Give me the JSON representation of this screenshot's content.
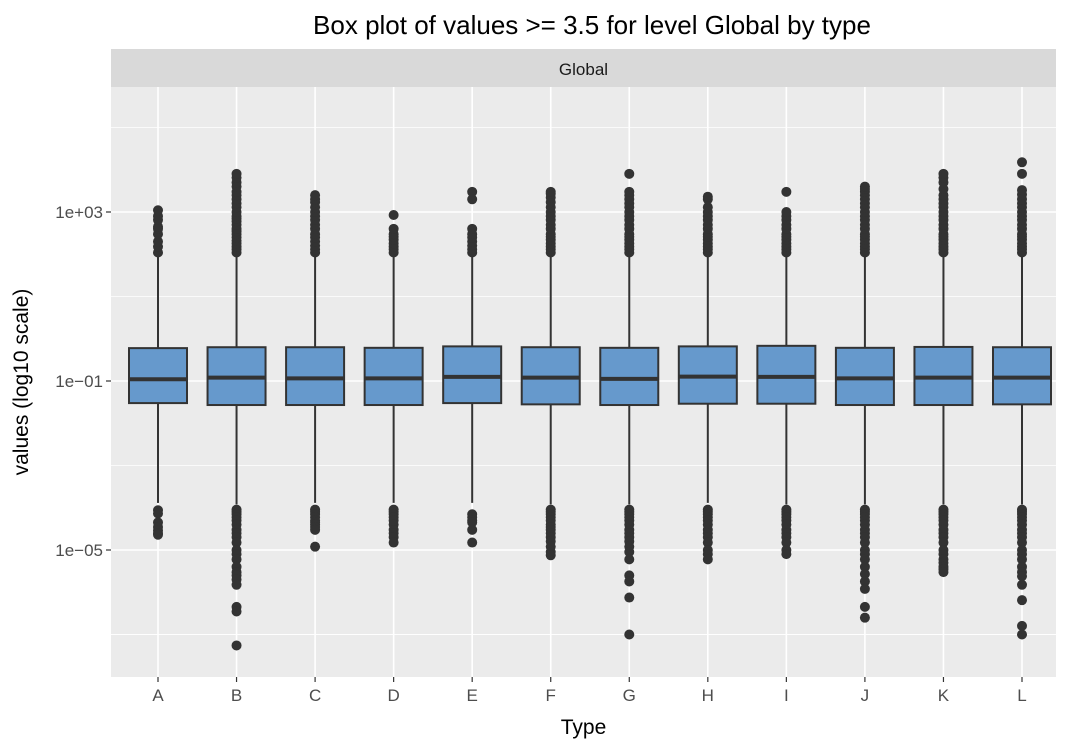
{
  "chart_data": {
    "type": "box",
    "title": "Box plot of values >= 3.5 for level Global by type",
    "facet_label": "Global",
    "xlabel": "Type",
    "ylabel": "values (log10 scale)",
    "y_scale": "log10",
    "ylim": [
      3e-08,
      50000
    ],
    "y_ticks": [
      {
        "value": 1e-05,
        "label": "1e−05"
      },
      {
        "value": 0.1,
        "label": "1e−01"
      },
      {
        "value": 1000,
        "label": "1e+03"
      }
    ],
    "grid": true,
    "categories": [
      "A",
      "B",
      "C",
      "D",
      "E",
      "F",
      "G",
      "H",
      "I",
      "J",
      "K",
      "L"
    ],
    "boxes": [
      {
        "type": "A",
        "lower_whisker": 0.00013,
        "q1": 0.03,
        "median": 0.11,
        "q3": 0.6,
        "upper_whisker": 100,
        "outliers": [
          8.7e-05,
          7.3e-05,
          4.5e-05,
          3.5e-05,
          2.9e-05,
          2.5e-05,
          2.3e-05,
          110,
          150,
          200,
          300,
          400,
          450,
          650,
          800,
          1100
        ]
      },
      {
        "type": "B",
        "lower_whisker": 0.00012,
        "q1": 0.027,
        "median": 0.12,
        "q3": 0.63,
        "upper_whisker": 100,
        "outliers": [
          9e-05,
          8e-05,
          7e-05,
          6e-05,
          5e-05,
          4e-05,
          3e-05,
          2.5e-05,
          2e-05,
          1.5e-05,
          1e-05,
          8e-06,
          6e-06,
          4e-06,
          3e-06,
          2.5e-06,
          2e-06,
          1.5e-06,
          4.5e-07,
          3.5e-07,
          5.5e-08,
          110,
          130,
          150,
          180,
          210,
          250,
          300,
          350,
          400,
          500,
          600,
          700,
          800,
          1000,
          1300,
          1600,
          2000,
          2500,
          3000,
          4000,
          5000,
          6500,
          8000
        ]
      },
      {
        "type": "C",
        "lower_whisker": 0.00013,
        "q1": 0.027,
        "median": 0.115,
        "q3": 0.63,
        "upper_whisker": 100,
        "outliers": [
          9e-05,
          8e-05,
          7e-05,
          6e-05,
          5e-05,
          4.5e-05,
          4e-05,
          3.5e-05,
          3e-05,
          1.2e-05,
          110,
          130,
          160,
          200,
          250,
          300,
          400,
          500,
          650,
          800,
          1000,
          1300,
          1700,
          2000,
          2500
        ]
      },
      {
        "type": "D",
        "lower_whisker": 0.00013,
        "q1": 0.027,
        "median": 0.115,
        "q3": 0.61,
        "upper_whisker": 100,
        "outliers": [
          9e-05,
          8e-05,
          7e-05,
          6e-05,
          5e-05,
          4e-05,
          3e-05,
          2.5e-05,
          2e-05,
          1.5e-05,
          110,
          130,
          150,
          180,
          220,
          260,
          300,
          400,
          850
        ]
      },
      {
        "type": "E",
        "lower_whisker": 0.00013,
        "q1": 0.03,
        "median": 0.125,
        "q3": 0.66,
        "upper_whisker": 100,
        "outliers": [
          7e-05,
          6e-05,
          5e-05,
          4.5e-05,
          3e-05,
          1.5e-05,
          110,
          130,
          160,
          200,
          250,
          300,
          400,
          3000,
          2000
        ]
      },
      {
        "type": "F",
        "lower_whisker": 0.00012,
        "q1": 0.028,
        "median": 0.12,
        "q3": 0.63,
        "upper_whisker": 100,
        "outliers": [
          9e-05,
          8e-05,
          7e-05,
          6e-05,
          5e-05,
          4e-05,
          3.5e-05,
          3e-05,
          2.5e-05,
          2e-05,
          1.6e-05,
          1.2e-05,
          9e-06,
          7.5e-06,
          110,
          130,
          150,
          180,
          220,
          260,
          300,
          400,
          500,
          650,
          800,
          1000,
          1300,
          1700,
          2200,
          2700,
          3000
        ]
      },
      {
        "type": "G",
        "lower_whisker": 0.00012,
        "q1": 0.027,
        "median": 0.112,
        "q3": 0.61,
        "upper_whisker": 100,
        "outliers": [
          9e-05,
          8e-05,
          7e-05,
          6e-05,
          5e-05,
          4e-05,
          3e-05,
          2.5e-05,
          2e-05,
          1.6e-05,
          1.2e-05,
          9e-06,
          6e-06,
          2.5e-06,
          1.8e-06,
          7.5e-07,
          1e-07,
          110,
          130,
          150,
          180,
          220,
          260,
          300,
          400,
          500,
          650,
          800,
          1000,
          1300,
          1600,
          2000,
          2500,
          3000,
          8000
        ]
      },
      {
        "type": "H",
        "lower_whisker": 0.00013,
        "q1": 0.029,
        "median": 0.127,
        "q3": 0.66,
        "upper_whisker": 100,
        "outliers": [
          9e-05,
          8e-05,
          7e-05,
          6e-05,
          5e-05,
          4e-05,
          3e-05,
          2.5e-05,
          2e-05,
          1.5e-05,
          1e-05,
          8e-06,
          6e-06,
          110,
          130,
          150,
          180,
          220,
          260,
          300,
          400,
          500,
          650,
          800,
          1000,
          1300,
          2000,
          2300
        ]
      },
      {
        "type": "I",
        "lower_whisker": 0.00012,
        "q1": 0.029,
        "median": 0.125,
        "q3": 0.68,
        "upper_whisker": 100,
        "outliers": [
          9e-05,
          8e-05,
          7e-05,
          6e-05,
          5e-05,
          4e-05,
          3e-05,
          2.5e-05,
          2e-05,
          1.5e-05,
          1e-05,
          8e-06,
          110,
          130,
          150,
          180,
          220,
          260,
          300,
          400,
          500,
          650,
          800,
          1000,
          3000
        ]
      },
      {
        "type": "J",
        "lower_whisker": 0.00012,
        "q1": 0.027,
        "median": 0.115,
        "q3": 0.61,
        "upper_whisker": 100,
        "outliers": [
          9e-05,
          8e-05,
          7e-05,
          6e-05,
          5e-05,
          4e-05,
          3e-05,
          2.5e-05,
          2e-05,
          1.5e-05,
          1e-05,
          8e-06,
          6e-06,
          4e-06,
          2.7e-06,
          1.8e-06,
          1.2e-06,
          4.5e-07,
          2.5e-07,
          110,
          130,
          150,
          180,
          220,
          260,
          300,
          400,
          500,
          650,
          800,
          1000,
          1300,
          1600,
          2000,
          2500,
          3000,
          3500,
          4000
        ]
      },
      {
        "type": "K",
        "lower_whisker": 0.00012,
        "q1": 0.027,
        "median": 0.12,
        "q3": 0.64,
        "upper_whisker": 100,
        "outliers": [
          9e-05,
          8e-05,
          7e-05,
          6e-05,
          5e-05,
          4e-05,
          3e-05,
          2.5e-05,
          2e-05,
          1.5e-05,
          1e-05,
          8e-06,
          6e-06,
          5e-06,
          4e-06,
          3.5e-06,
          3e-06,
          110,
          130,
          150,
          180,
          220,
          260,
          300,
          400,
          500,
          650,
          800,
          1000,
          1300,
          1600,
          2000,
          2500,
          3500,
          5000,
          6500,
          8000
        ]
      },
      {
        "type": "L",
        "lower_whisker": 0.00012,
        "q1": 0.028,
        "median": 0.12,
        "q3": 0.63,
        "upper_whisker": 100,
        "outliers": [
          9e-05,
          8e-05,
          7e-05,
          6e-05,
          5e-05,
          4e-05,
          3e-05,
          2.5e-05,
          2e-05,
          1.5e-05,
          1e-05,
          8e-06,
          6e-06,
          4e-06,
          3e-06,
          2.4e-06,
          1.5e-06,
          6.5e-07,
          1.6e-07,
          1e-07,
          110,
          130,
          150,
          180,
          220,
          260,
          300,
          400,
          500,
          650,
          800,
          1000,
          1300,
          1600,
          2000,
          2600,
          3300,
          8000,
          15000
        ]
      }
    ]
  },
  "colors": {
    "panel_background": "#ebebeb",
    "strip_background": "#d9d9d9",
    "gridline": "#ffffff",
    "box_fill": "#6699cc",
    "box_outline": "#333333",
    "outlier": "#333333",
    "text": "#000000",
    "tick_label": "#4d4d4d"
  }
}
